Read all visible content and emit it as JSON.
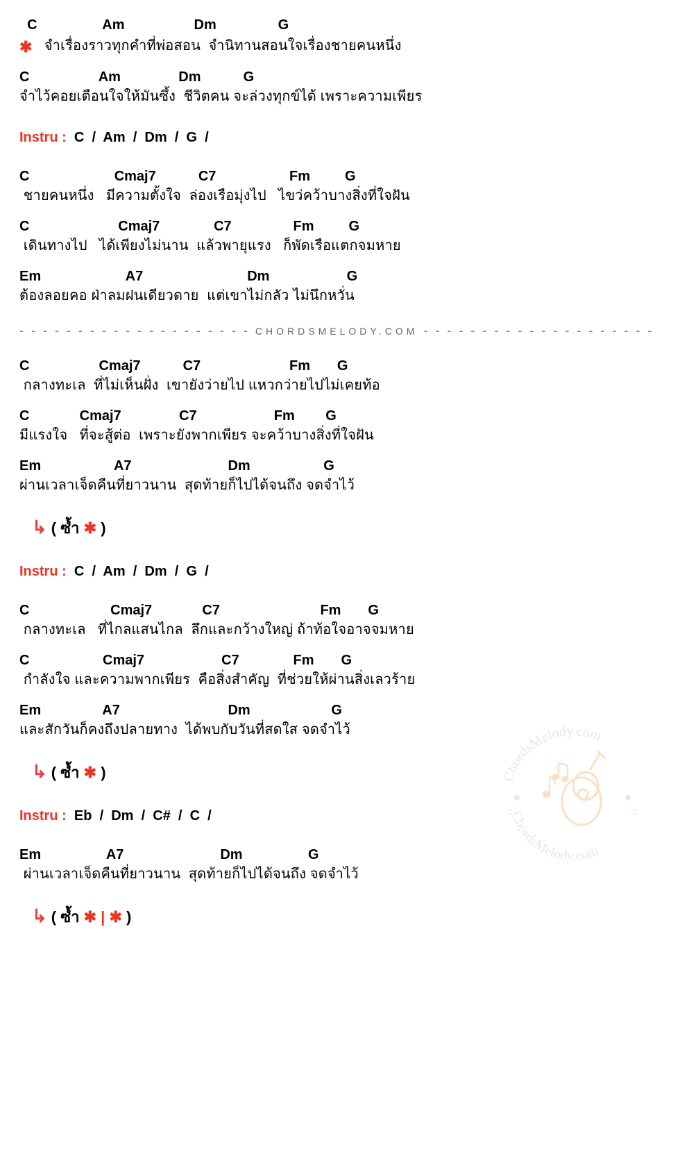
{
  "colors": {
    "text": "#000000",
    "accent_red": "#ee3322",
    "divider_gray": "#888888",
    "brand_gray": "#666666",
    "background": "#ffffff",
    "watermark_orange": "#f4a460",
    "watermark_gray": "#bbbbbb"
  },
  "typography": {
    "chord_fontsize": 20,
    "lyric_fontsize": 20,
    "chord_weight": "bold",
    "font_family": "Tahoma, Arial, sans-serif"
  },
  "chorus_symbol": "✱",
  "repeat_arrow": "↳",
  "blocks": [
    {
      "type": "pair",
      "chorus_start": true,
      "chords": "  C                 Am                  Dm                G",
      "lyric": "   จำเรื่องราวทุกคำที่พ่อสอน  จำนิทานสอนใจเรื่องชายคนหนึ่ง"
    },
    {
      "type": "pair",
      "chords": "C                  Am               Dm           G",
      "lyric": "จำไว้คอยเตือนใจให้มันซึ้ง  ชีวิตคน จะล่วงทุกข์ได้ เพราะความเพียร"
    },
    {
      "type": "instru",
      "label": "Instru : ",
      "chords": " C  /  Am  /  Dm  /  G  /"
    },
    {
      "type": "pair",
      "chords": "C                      Cmaj7           C7                   Fm         G",
      "lyric": " ชายคนหนึ่ง   มีความตั้งใจ  ล่องเรือมุ่งไป   ไขว่คว้าบางสิ่งที่ใจฝัน"
    },
    {
      "type": "pair",
      "chords": "C                       Cmaj7              C7                Fm         G",
      "lyric": " เดินทางไป   ได้เพียงไม่นาน  แล้วพายุแรง   ก็พัดเรือแตกจมหาย"
    },
    {
      "type": "pair",
      "chords": "Em                      A7                           Dm                    G",
      "lyric": "ต้องลอยคอ ฝ่าลมฝนเดียวดาย  แต่เขาไม่กลัว ไม่นึกหวั่น"
    },
    {
      "type": "divider",
      "brand": "CHORDSMELODY.COM"
    },
    {
      "type": "pair",
      "chords": "C                  Cmaj7           C7                       Fm       G",
      "lyric": " กลางทะเล  ที่ไม่เห็นฝั่ง  เขายังว่ายไป แหวกว่ายไปไม่เคยท้อ"
    },
    {
      "type": "pair",
      "chords": "C             Cmaj7               C7                    Fm        G",
      "lyric": "มีแรงใจ   ที่จะสู้ต่อ  เพราะยังพากเพียร จะคว้าบางสิ่งที่ใจฝัน"
    },
    {
      "type": "pair",
      "chords": "Em                   A7                         Dm                   G",
      "lyric": "ผ่านเวลาเจ็ดคืนที่ยาวนาน  สุดท้ายก็ไปได้จนถึง จดจำไว้"
    },
    {
      "type": "repeat",
      "text_open": "( ซ้ำ ",
      "stars": "✱",
      "text_close": " )"
    },
    {
      "type": "instru",
      "label": "Instru : ",
      "chords": " C  /  Am  /  Dm  /  G  /"
    },
    {
      "type": "pair",
      "chords": "C                     Cmaj7             C7                          Fm       G",
      "lyric": " กลางทะเล   ที่ไกลแสนไกล  ลึกและกว้างใหญ่ ถ้าท้อใจอาจจมหาย"
    },
    {
      "type": "pair",
      "chords": "C                   Cmaj7                    C7              Fm       G",
      "lyric": " กำลังใจ และความพากเพียร  คือสิ่งสำคัญ  ที่ช่วยให้ผ่านสิ่งเลวร้าย"
    },
    {
      "type": "pair",
      "chords": "Em                A7                            Dm                     G",
      "lyric": "และสักวันก็คงถึงปลายทาง  ได้พบกับวันที่สดใส จดจำไว้"
    },
    {
      "type": "repeat",
      "text_open": "( ซ้ำ ",
      "stars": "✱",
      "text_close": " )"
    },
    {
      "type": "instru",
      "label": "Instru : ",
      "chords": " Eb  /  Dm  /  C#  /  C  /"
    },
    {
      "type": "pair",
      "chords": "Em                 A7                         Dm                 G",
      "lyric": " ผ่านเวลาเจ็ดคืนที่ยาวนาน  สุดท้ายก็ไปได้จนถึง จดจำไว้"
    },
    {
      "type": "repeat",
      "text_open": "( ซ้ำ ",
      "stars": "✱ | ✱",
      "text_close": " )"
    }
  ],
  "watermark": {
    "text_top": "ChordsMelody.com",
    "text_bottom": "ChordsMelody.com"
  }
}
